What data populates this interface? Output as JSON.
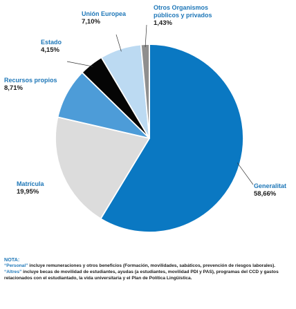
{
  "chart_data": {
    "type": "pie",
    "slices": [
      {
        "label": "Generalitat",
        "value": 58.66,
        "display": "58,66%",
        "color": "#0a78c2"
      },
      {
        "label": "Matrícula",
        "value": 19.95,
        "display": "19,95%",
        "color": "#dcdcdc"
      },
      {
        "label": "Recursos propios",
        "value": 8.71,
        "display": "8,71%",
        "color": "#4d9cd8"
      },
      {
        "label": "Estado",
        "value": 4.15,
        "display": "4,15%",
        "color": "#050505"
      },
      {
        "label": "Unión Europea",
        "value": 7.1,
        "display": "7,10%",
        "color": "#bcdaf2"
      },
      {
        "label": "Otros Organismos públicos y privados",
        "label_lines": [
          "Otros Organismos",
          "públicos y privados"
        ],
        "value": 1.43,
        "display": "1,43%",
        "color": "#8f8f8f"
      }
    ],
    "label_color": "#1e77b8",
    "start": "12 o'clock",
    "direction": "clockwise"
  },
  "note": {
    "title": "NOTA:",
    "items": [
      {
        "term": "“Personal”",
        "text": " incluye remuneraciones y otros beneficios (Formación, movilidades, sabáticos, prevención de riesgos laborales)."
      },
      {
        "term": "“Altres”",
        "text": " incluye becas de movilidad de estudiantes, ayudas (a estudiantes, movilidad PDI y PAS), programas del CCD y gastos relacionados con el estudiantado, la vida universitaria y el Plan de Política Lingüística."
      }
    ]
  }
}
